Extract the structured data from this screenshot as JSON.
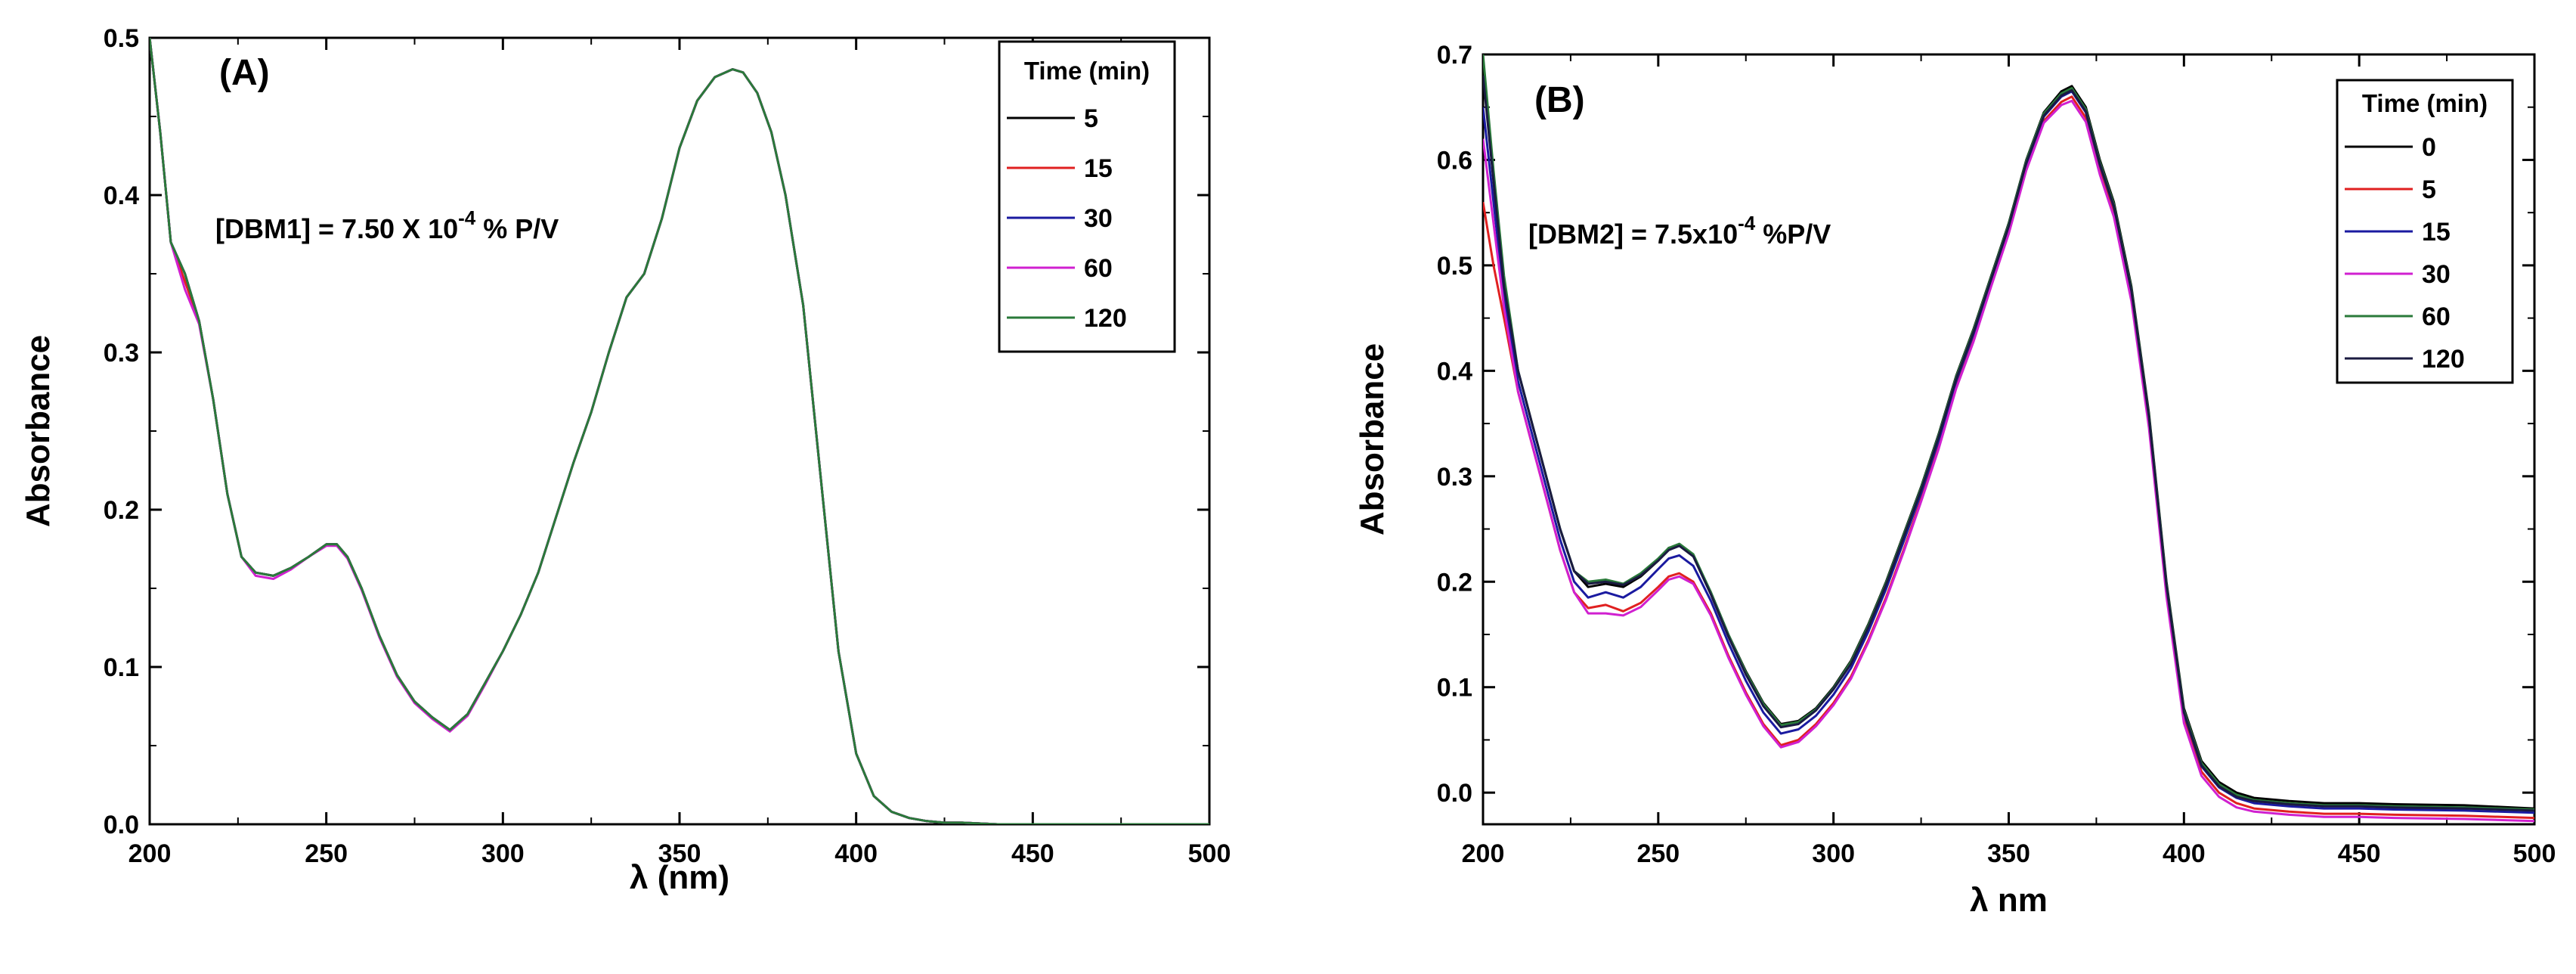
{
  "chart_data": [
    {
      "type": "line",
      "panel_label": "(A)",
      "annotation": {
        "prefix": "[DBM1] = 7.50 X 10",
        "sup": "-4",
        "suffix": " % P/V"
      },
      "xlabel": "λ (nm)",
      "ylabel": "Absorbance",
      "xlim": [
        200,
        500
      ],
      "ylim": [
        0.0,
        0.5
      ],
      "xticks": [
        "200",
        "250",
        "300",
        "350",
        "400",
        "450",
        "500"
      ],
      "yticks": [
        "0.0",
        "0.1",
        "0.2",
        "0.3",
        "0.4",
        "0.5"
      ],
      "legend_title": "Time (min)",
      "legend_position": "top-right",
      "x": [
        200,
        203,
        206,
        210,
        214,
        218,
        222,
        226,
        230,
        235,
        240,
        245,
        250,
        253,
        256,
        260,
        265,
        270,
        275,
        280,
        285,
        290,
        295,
        300,
        305,
        310,
        315,
        320,
        325,
        330,
        335,
        340,
        345,
        350,
        355,
        360,
        365,
        368,
        372,
        376,
        380,
        385,
        390,
        395,
        400,
        405,
        410,
        415,
        420,
        425,
        430,
        440,
        450,
        460,
        480,
        500
      ],
      "series": [
        {
          "name": "5",
          "color": "#000000",
          "values": [
            0.5,
            0.44,
            0.37,
            0.35,
            0.32,
            0.27,
            0.21,
            0.17,
            0.16,
            0.158,
            0.163,
            0.17,
            0.178,
            0.178,
            0.17,
            0.15,
            0.12,
            0.095,
            0.078,
            0.068,
            0.06,
            0.07,
            0.09,
            0.11,
            0.133,
            0.16,
            0.195,
            0.23,
            0.262,
            0.3,
            0.335,
            0.35,
            0.385,
            0.43,
            0.46,
            0.475,
            0.48,
            0.478,
            0.465,
            0.44,
            0.4,
            0.33,
            0.22,
            0.11,
            0.045,
            0.018,
            0.008,
            0.004,
            0.002,
            0.001,
            0.001,
            0.0,
            0.0,
            0.0,
            0.0,
            0.0
          ]
        },
        {
          "name": "15",
          "color": "#e02020",
          "values": [
            0.5,
            0.44,
            0.37,
            0.345,
            0.32,
            0.27,
            0.21,
            0.17,
            0.16,
            0.158,
            0.163,
            0.17,
            0.178,
            0.178,
            0.17,
            0.15,
            0.12,
            0.095,
            0.078,
            0.068,
            0.06,
            0.07,
            0.09,
            0.11,
            0.133,
            0.16,
            0.195,
            0.23,
            0.262,
            0.3,
            0.335,
            0.35,
            0.385,
            0.43,
            0.46,
            0.475,
            0.48,
            0.478,
            0.465,
            0.44,
            0.4,
            0.33,
            0.22,
            0.11,
            0.045,
            0.018,
            0.008,
            0.004,
            0.002,
            0.001,
            0.001,
            0.0,
            0.0,
            0.0,
            0.0,
            0.0
          ]
        },
        {
          "name": "30",
          "color": "#1a1aa0",
          "values": [
            0.5,
            0.44,
            0.37,
            0.35,
            0.32,
            0.27,
            0.21,
            0.17,
            0.16,
            0.158,
            0.163,
            0.17,
            0.178,
            0.178,
            0.17,
            0.15,
            0.12,
            0.095,
            0.078,
            0.068,
            0.06,
            0.07,
            0.09,
            0.11,
            0.133,
            0.16,
            0.195,
            0.23,
            0.262,
            0.3,
            0.335,
            0.35,
            0.385,
            0.43,
            0.46,
            0.475,
            0.48,
            0.478,
            0.465,
            0.44,
            0.4,
            0.33,
            0.22,
            0.11,
            0.045,
            0.018,
            0.008,
            0.004,
            0.002,
            0.001,
            0.001,
            0.0,
            0.0,
            0.0,
            0.0,
            0.0
          ]
        },
        {
          "name": "60",
          "color": "#d020d0",
          "values": [
            0.5,
            0.44,
            0.37,
            0.34,
            0.318,
            0.27,
            0.21,
            0.17,
            0.158,
            0.156,
            0.162,
            0.17,
            0.177,
            0.177,
            0.169,
            0.149,
            0.119,
            0.094,
            0.077,
            0.067,
            0.059,
            0.069,
            0.089,
            0.11,
            0.133,
            0.16,
            0.195,
            0.23,
            0.262,
            0.3,
            0.335,
            0.35,
            0.385,
            0.43,
            0.46,
            0.475,
            0.48,
            0.478,
            0.465,
            0.44,
            0.4,
            0.33,
            0.22,
            0.11,
            0.045,
            0.018,
            0.008,
            0.004,
            0.002,
            0.001,
            0.001,
            0.0,
            0.0,
            0.0,
            0.0,
            0.0
          ]
        },
        {
          "name": "120",
          "color": "#2a7a3a",
          "values": [
            0.5,
            0.44,
            0.37,
            0.35,
            0.32,
            0.27,
            0.21,
            0.17,
            0.16,
            0.158,
            0.163,
            0.17,
            0.178,
            0.178,
            0.17,
            0.15,
            0.12,
            0.095,
            0.078,
            0.068,
            0.06,
            0.07,
            0.09,
            0.11,
            0.133,
            0.16,
            0.195,
            0.23,
            0.262,
            0.3,
            0.335,
            0.35,
            0.385,
            0.43,
            0.46,
            0.475,
            0.48,
            0.478,
            0.465,
            0.44,
            0.4,
            0.33,
            0.22,
            0.11,
            0.045,
            0.018,
            0.008,
            0.004,
            0.002,
            0.001,
            0.001,
            0.0,
            0.0,
            0.0,
            0.0,
            0.0
          ]
        }
      ]
    },
    {
      "type": "line",
      "panel_label": "(B)",
      "annotation": {
        "prefix": "[DBM2] =  7.5x10",
        "sup": "-4",
        "suffix": " %P/V"
      },
      "xlabel": "λ nm",
      "ylabel": "Absorbance",
      "xlim": [
        200,
        500
      ],
      "ylim": [
        -0.03,
        0.7
      ],
      "xticks": [
        "200",
        "250",
        "300",
        "350",
        "400",
        "450",
        "500"
      ],
      "yticks": [
        "0.0",
        "0.1",
        "0.2",
        "0.3",
        "0.4",
        "0.5",
        "0.6",
        "0.7"
      ],
      "legend_title": "Time (min)",
      "legend_position": "top-right",
      "x": [
        200,
        203,
        206,
        210,
        214,
        218,
        222,
        226,
        230,
        235,
        240,
        245,
        250,
        253,
        256,
        260,
        265,
        270,
        275,
        280,
        285,
        290,
        295,
        300,
        305,
        310,
        315,
        320,
        325,
        330,
        335,
        340,
        345,
        350,
        355,
        360,
        365,
        368,
        372,
        376,
        380,
        385,
        390,
        395,
        400,
        405,
        410,
        415,
        420,
        430,
        440,
        450,
        460,
        480,
        500
      ],
      "series": [
        {
          "name": "0",
          "color": "#000000",
          "values": [
            0.69,
            0.58,
            0.48,
            0.4,
            0.35,
            0.3,
            0.25,
            0.21,
            0.195,
            0.198,
            0.195,
            0.205,
            0.22,
            0.232,
            0.235,
            0.225,
            0.19,
            0.15,
            0.115,
            0.085,
            0.065,
            0.068,
            0.08,
            0.1,
            0.125,
            0.16,
            0.2,
            0.245,
            0.29,
            0.34,
            0.395,
            0.44,
            0.49,
            0.54,
            0.6,
            0.645,
            0.665,
            0.67,
            0.65,
            0.6,
            0.56,
            0.48,
            0.36,
            0.2,
            0.08,
            0.03,
            0.01,
            0.0,
            -0.005,
            -0.008,
            -0.01,
            -0.01,
            -0.011,
            -0.012,
            -0.015
          ]
        },
        {
          "name": "5",
          "color": "#e02020",
          "values": [
            0.56,
            0.5,
            0.45,
            0.38,
            0.33,
            0.28,
            0.23,
            0.19,
            0.175,
            0.178,
            0.172,
            0.18,
            0.195,
            0.205,
            0.208,
            0.2,
            0.17,
            0.13,
            0.095,
            0.065,
            0.045,
            0.05,
            0.065,
            0.085,
            0.11,
            0.145,
            0.185,
            0.23,
            0.278,
            0.328,
            0.385,
            0.43,
            0.482,
            0.532,
            0.592,
            0.637,
            0.655,
            0.66,
            0.64,
            0.59,
            0.55,
            0.47,
            0.35,
            0.19,
            0.07,
            0.02,
            0.0,
            -0.01,
            -0.015,
            -0.018,
            -0.02,
            -0.02,
            -0.021,
            -0.022,
            -0.024
          ]
        },
        {
          "name": "15",
          "color": "#1a1aa0",
          "values": [
            0.65,
            0.56,
            0.47,
            0.39,
            0.34,
            0.29,
            0.24,
            0.2,
            0.185,
            0.19,
            0.185,
            0.195,
            0.212,
            0.222,
            0.225,
            0.215,
            0.182,
            0.142,
            0.106,
            0.076,
            0.056,
            0.06,
            0.073,
            0.093,
            0.118,
            0.153,
            0.193,
            0.238,
            0.284,
            0.334,
            0.39,
            0.435,
            0.486,
            0.536,
            0.596,
            0.641,
            0.66,
            0.665,
            0.645,
            0.595,
            0.555,
            0.475,
            0.355,
            0.195,
            0.075,
            0.025,
            0.005,
            -0.005,
            -0.01,
            -0.013,
            -0.015,
            -0.015,
            -0.016,
            -0.017,
            -0.019
          ]
        },
        {
          "name": "30",
          "color": "#d020d0",
          "values": [
            0.62,
            0.54,
            0.46,
            0.38,
            0.33,
            0.28,
            0.23,
            0.19,
            0.17,
            0.17,
            0.168,
            0.176,
            0.192,
            0.202,
            0.205,
            0.198,
            0.168,
            0.128,
            0.093,
            0.063,
            0.043,
            0.048,
            0.063,
            0.083,
            0.108,
            0.143,
            0.183,
            0.228,
            0.276,
            0.326,
            0.383,
            0.428,
            0.48,
            0.53,
            0.59,
            0.635,
            0.652,
            0.656,
            0.636,
            0.586,
            0.546,
            0.466,
            0.346,
            0.186,
            0.066,
            0.016,
            -0.004,
            -0.014,
            -0.018,
            -0.021,
            -0.023,
            -0.023,
            -0.024,
            -0.025,
            -0.027
          ]
        },
        {
          "name": "60",
          "color": "#2a7a3a",
          "values": [
            0.7,
            0.59,
            0.49,
            0.4,
            0.35,
            0.3,
            0.25,
            0.21,
            0.2,
            0.202,
            0.198,
            0.208,
            0.222,
            0.232,
            0.236,
            0.226,
            0.19,
            0.15,
            0.114,
            0.084,
            0.064,
            0.067,
            0.079,
            0.099,
            0.124,
            0.159,
            0.199,
            0.244,
            0.289,
            0.339,
            0.394,
            0.439,
            0.489,
            0.539,
            0.599,
            0.644,
            0.663,
            0.668,
            0.648,
            0.598,
            0.558,
            0.478,
            0.358,
            0.198,
            0.078,
            0.028,
            0.008,
            -0.002,
            -0.007,
            -0.01,
            -0.012,
            -0.012,
            -0.013,
            -0.014,
            -0.016
          ]
        },
        {
          "name": "120",
          "color": "#1a1a40",
          "values": [
            0.68,
            0.58,
            0.48,
            0.4,
            0.35,
            0.3,
            0.25,
            0.21,
            0.198,
            0.2,
            0.197,
            0.206,
            0.22,
            0.23,
            0.234,
            0.224,
            0.188,
            0.148,
            0.112,
            0.082,
            0.062,
            0.065,
            0.078,
            0.098,
            0.122,
            0.157,
            0.197,
            0.242,
            0.287,
            0.337,
            0.392,
            0.437,
            0.487,
            0.537,
            0.597,
            0.642,
            0.661,
            0.666,
            0.646,
            0.596,
            0.556,
            0.476,
            0.356,
            0.196,
            0.076,
            0.026,
            0.006,
            -0.004,
            -0.008,
            -0.011,
            -0.013,
            -0.013,
            -0.014,
            -0.015,
            -0.017
          ]
        }
      ]
    }
  ]
}
